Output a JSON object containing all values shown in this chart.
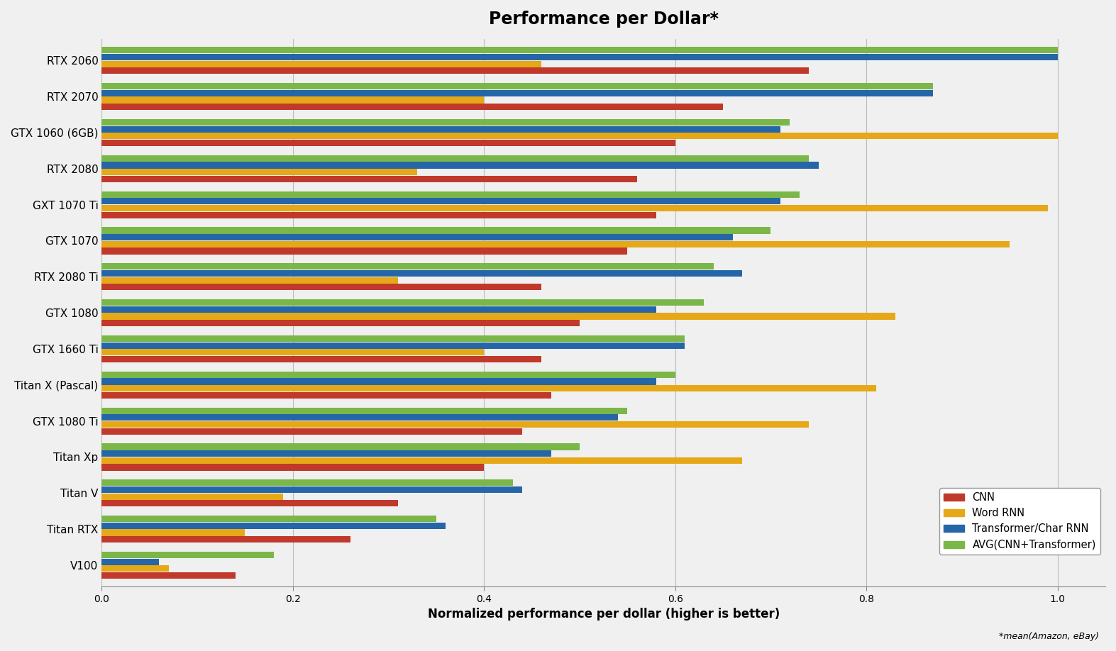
{
  "title": "Performance per Dollar*",
  "xlabel": "Normalized performance per dollar (higher is better)",
  "footnote": "*mean(Amazon, eBay)",
  "categories": [
    "RTX 2060",
    "RTX 2070",
    "GTX 1060 (6GB)",
    "RTX 2080",
    "GXT 1070 Ti",
    "GTX 1070",
    "RTX 2080 Ti",
    "GTX 1080",
    "GTX 1660 Ti",
    "Titan X (Pascal)",
    "GTX 1080 Ti",
    "Titan Xp",
    "Titan V",
    "Titan RTX",
    "V100"
  ],
  "series_order": [
    "AVG(CNN+Transformer)",
    "Transformer/Char RNN",
    "Word RNN",
    "CNN"
  ],
  "series": {
    "CNN": [
      0.74,
      0.65,
      0.6,
      0.56,
      0.58,
      0.55,
      0.46,
      0.5,
      0.46,
      0.47,
      0.44,
      0.4,
      0.31,
      0.26,
      0.14
    ],
    "Word RNN": [
      0.46,
      0.4,
      1.0,
      0.33,
      0.99,
      0.95,
      0.31,
      0.83,
      0.4,
      0.81,
      0.74,
      0.67,
      0.19,
      0.15,
      0.07
    ],
    "Transformer/Char RNN": [
      1.0,
      0.87,
      0.71,
      0.75,
      0.71,
      0.66,
      0.67,
      0.58,
      0.61,
      0.58,
      0.54,
      0.47,
      0.44,
      0.36,
      0.06
    ],
    "AVG(CNN+Transformer)": [
      1.0,
      0.87,
      0.72,
      0.74,
      0.73,
      0.7,
      0.64,
      0.63,
      0.61,
      0.6,
      0.55,
      0.5,
      0.43,
      0.35,
      0.18
    ]
  },
  "colors": {
    "CNN": "#c0392b",
    "Word RNN": "#e6a817",
    "Transformer/Char RNN": "#2566a8",
    "AVG(CNN+Transformer)": "#7ab648"
  },
  "legend_order": [
    "CNN",
    "Word RNN",
    "Transformer/Char RNN",
    "AVG(CNN+Transformer)"
  ],
  "xlim": [
    0,
    1.05
  ],
  "bar_height": 0.19,
  "background_color": "#f0f0f0",
  "grid_color": "#bbbbbb"
}
